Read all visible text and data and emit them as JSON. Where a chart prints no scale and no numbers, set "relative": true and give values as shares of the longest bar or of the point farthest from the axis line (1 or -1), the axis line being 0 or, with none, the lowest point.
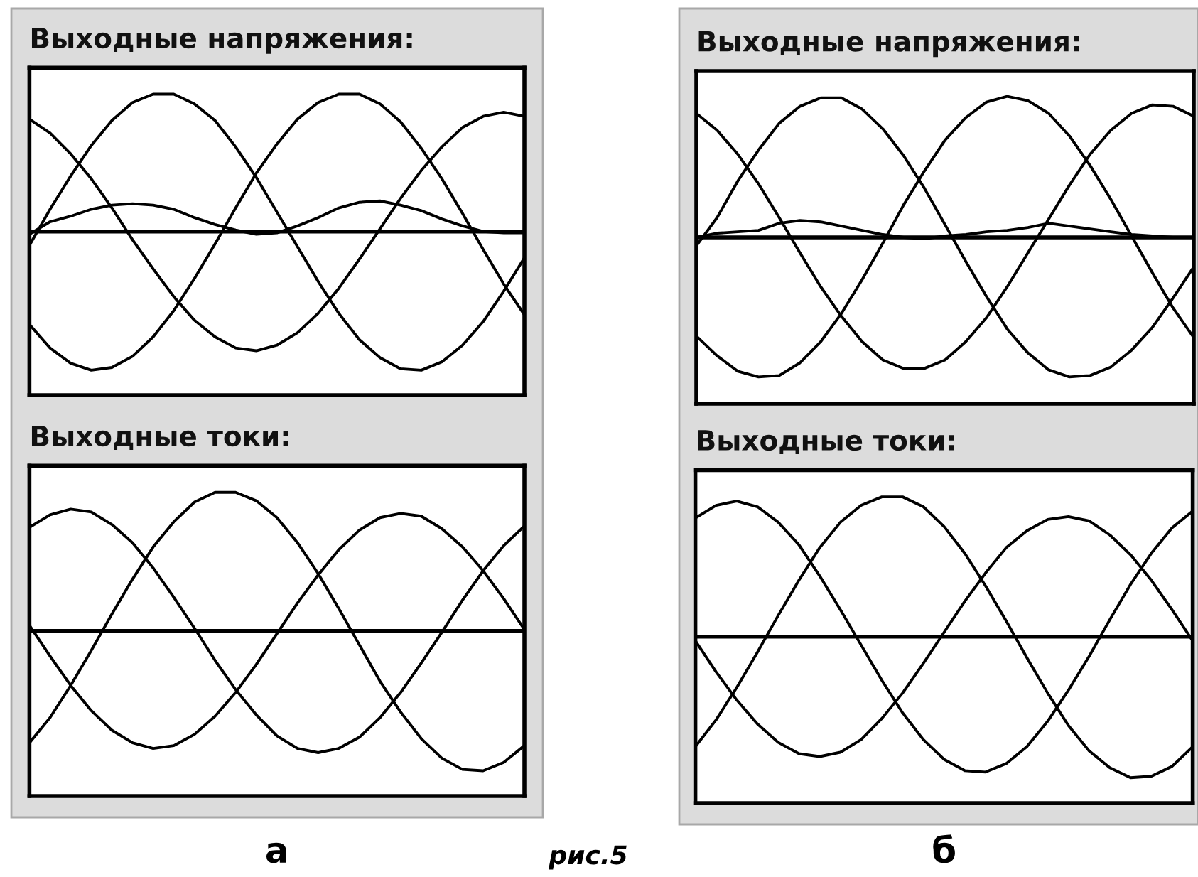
{
  "chart_data": [
    {
      "type": "line",
      "title": "Выходные напряжения:",
      "relative": true,
      "tick_labels": false,
      "categories": [
        null,
        null,
        null,
        null,
        null,
        null,
        null,
        null,
        null,
        null,
        null,
        null,
        null,
        null,
        null,
        null,
        null,
        null,
        null,
        null,
        null,
        null,
        null,
        null,
        null
      ],
      "series": [
        {
          "color": "#000000",
          "values": [
            0.81,
            0.71,
            0.56,
            0.38,
            0.17,
            -0.06,
            -0.27,
            -0.47,
            -0.64,
            -0.76,
            -0.84,
            -0.86,
            -0.82,
            -0.73,
            -0.59,
            -0.41,
            -0.2,
            0.02,
            0.24,
            0.44,
            0.61,
            0.75,
            0.83,
            0.86,
            0.83
          ]
        },
        {
          "color": "#000000",
          "values": [
            -0.1,
            0.16,
            0.4,
            0.62,
            0.8,
            0.93,
            0.99,
            0.99,
            0.92,
            0.8,
            0.61,
            0.39,
            0.14,
            -0.11,
            -0.36,
            -0.59,
            -0.78,
            -0.91,
            -0.99,
            -1.0,
            -0.94,
            -0.82,
            -0.65,
            -0.43,
            -0.19
          ]
        },
        {
          "color": "#000000",
          "values": [
            -0.67,
            -0.84,
            -0.95,
            -1.0,
            -0.98,
            -0.9,
            -0.76,
            -0.57,
            -0.34,
            -0.09,
            0.17,
            0.42,
            0.63,
            0.81,
            0.93,
            0.99,
            0.99,
            0.92,
            0.79,
            0.6,
            0.38,
            0.13,
            -0.13,
            -0.38,
            -0.6
          ]
        },
        {
          "color": "#000000",
          "values": [
            -0.02,
            0.07,
            0.11,
            0.16,
            0.19,
            0.2,
            0.19,
            0.16,
            0.1,
            0.05,
            0.01,
            -0.02,
            -0.01,
            0.04,
            0.1,
            0.17,
            0.21,
            0.22,
            0.19,
            0.15,
            0.09,
            0.04,
            0.0,
            -0.01,
            -0.01
          ]
        }
      ],
      "ref_lines": [
        {
          "axis": "y",
          "value": 0,
          "color": "#000000"
        }
      ]
    },
    {
      "type": "line",
      "title": "Выходные токи:",
      "relative": true,
      "tick_labels": false,
      "categories": [
        null,
        null,
        null,
        null,
        null,
        null,
        null,
        null,
        null,
        null,
        null,
        null,
        null,
        null,
        null,
        null,
        null,
        null,
        null,
        null,
        null,
        null,
        null,
        null,
        null
      ],
      "series": [
        {
          "color": "#000000",
          "values": [
            0.74,
            0.83,
            0.87,
            0.85,
            0.76,
            0.63,
            0.45,
            0.24,
            0.02,
            -0.21,
            -0.42,
            -0.6,
            -0.75,
            -0.84,
            -0.87,
            -0.84,
            -0.76,
            -0.62,
            -0.44,
            -0.23,
            -0.01,
            0.22,
            0.43,
            0.61,
            0.75
          ]
        },
        {
          "color": "#000000",
          "values": [
            0.04,
            -0.18,
            -0.39,
            -0.57,
            -0.71,
            -0.8,
            -0.84,
            -0.82,
            -0.74,
            -0.61,
            -0.44,
            -0.24,
            -0.02,
            0.2,
            0.4,
            0.58,
            0.72,
            0.81,
            0.84,
            0.82,
            0.73,
            0.6,
            0.43,
            0.23,
            0.01
          ]
        },
        {
          "color": "#000000",
          "values": [
            -0.8,
            -0.62,
            -0.39,
            -0.14,
            0.12,
            0.37,
            0.6,
            0.78,
            0.92,
            0.99,
            0.99,
            0.93,
            0.81,
            0.63,
            0.41,
            0.16,
            -0.1,
            -0.36,
            -0.58,
            -0.77,
            -0.91,
            -0.99,
            -1.0,
            -0.94,
            -0.82
          ]
        }
      ],
      "ref_lines": [
        {
          "axis": "y",
          "value": 0,
          "color": "#000000"
        }
      ],
      "annotations": [
        "а"
      ]
    },
    {
      "type": "line",
      "title": "Выходные напряжения:",
      "relative": true,
      "tick_labels": false,
      "categories": [
        null,
        null,
        null,
        null,
        null,
        null,
        null,
        null,
        null,
        null,
        null,
        null,
        null,
        null,
        null,
        null,
        null,
        null,
        null,
        null,
        null,
        null,
        null,
        null,
        null
      ],
      "series": [
        {
          "color": "#000000",
          "values": [
            0.88,
            0.76,
            0.59,
            0.38,
            0.14,
            -0.11,
            -0.35,
            -0.56,
            -0.74,
            -0.87,
            -0.93,
            -0.93,
            -0.87,
            -0.74,
            -0.57,
            -0.35,
            -0.11,
            0.13,
            0.37,
            0.59,
            0.76,
            0.88,
            0.94,
            0.93,
            0.86
          ]
        },
        {
          "color": "#000000",
          "values": [
            -0.06,
            0.14,
            0.4,
            0.62,
            0.81,
            0.93,
            0.99,
            0.99,
            0.91,
            0.77,
            0.58,
            0.35,
            0.09,
            -0.17,
            -0.42,
            -0.65,
            -0.82,
            -0.94,
            -0.99,
            -0.98,
            -0.92,
            -0.8,
            -0.64,
            -0.43,
            -0.21
          ]
        },
        {
          "color": "#000000",
          "values": [
            -0.7,
            -0.84,
            -0.95,
            -0.99,
            -0.98,
            -0.89,
            -0.74,
            -0.54,
            -0.3,
            -0.04,
            0.23,
            0.47,
            0.69,
            0.85,
            0.96,
            1.0,
            0.97,
            0.88,
            0.72,
            0.51,
            0.27,
            0.01,
            -0.25,
            -0.5,
            -0.71
          ]
        },
        {
          "color": "#000000",
          "values": [
            0.0,
            0.03,
            0.04,
            0.05,
            0.1,
            0.12,
            0.11,
            0.08,
            0.05,
            0.02,
            0.0,
            -0.01,
            0.01,
            0.02,
            0.04,
            0.05,
            0.07,
            0.1,
            0.08,
            0.06,
            0.04,
            0.02,
            0.01,
            0.0,
            0.0
          ]
        }
      ],
      "ref_lines": [
        {
          "axis": "y",
          "value": 0,
          "color": "#000000"
        }
      ]
    },
    {
      "type": "line",
      "title": "Выходные токи:",
      "relative": true,
      "tick_labels": false,
      "categories": [
        null,
        null,
        null,
        null,
        null,
        null,
        null,
        null,
        null,
        null,
        null,
        null,
        null,
        null,
        null,
        null,
        null,
        null,
        null,
        null,
        null,
        null,
        null,
        null,
        null
      ],
      "series": [
        {
          "color": "#000000",
          "values": [
            0.84,
            0.93,
            0.96,
            0.92,
            0.81,
            0.65,
            0.43,
            0.19,
            -0.06,
            -0.31,
            -0.54,
            -0.73,
            -0.87,
            -0.95,
            -0.96,
            -0.9,
            -0.78,
            -0.6,
            -0.38,
            -0.14,
            0.12,
            0.37,
            0.59,
            0.77,
            0.89
          ]
        },
        {
          "color": "#000000",
          "values": [
            -0.03,
            -0.25,
            -0.45,
            -0.62,
            -0.75,
            -0.83,
            -0.85,
            -0.82,
            -0.73,
            -0.58,
            -0.4,
            -0.19,
            0.03,
            0.25,
            0.45,
            0.63,
            0.75,
            0.83,
            0.85,
            0.82,
            0.72,
            0.58,
            0.4,
            0.19,
            -0.03
          ]
        },
        {
          "color": "#000000",
          "values": [
            -0.78,
            -0.59,
            -0.36,
            -0.11,
            0.15,
            0.4,
            0.63,
            0.81,
            0.93,
            0.99,
            0.99,
            0.92,
            0.78,
            0.59,
            0.36,
            0.11,
            -0.15,
            -0.4,
            -0.63,
            -0.81,
            -0.93,
            -1.0,
            -0.99,
            -0.92,
            -0.78
          ]
        }
      ],
      "ref_lines": [
        {
          "axis": "y",
          "value": 0,
          "color": "#000000"
        }
      ],
      "annotations": [
        "б",
        "рис.5"
      ]
    }
  ]
}
